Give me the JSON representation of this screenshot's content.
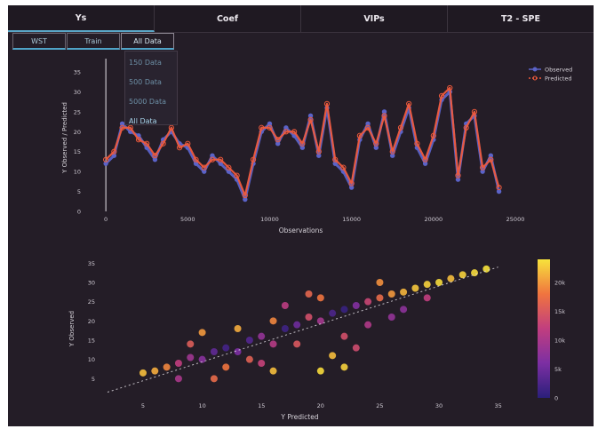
{
  "tabs": [
    {
      "label": "Ys"
    },
    {
      "label": "Coef"
    },
    {
      "label": "VIPs"
    },
    {
      "label": "T2 - SPE"
    }
  ],
  "subtabs": [
    {
      "label": "WST"
    },
    {
      "label": "Train"
    },
    {
      "label": "All Data"
    }
  ],
  "dropdown": {
    "options": [
      {
        "label": "150 Data"
      },
      {
        "label": "500 Data"
      },
      {
        "label": "5000 Data"
      },
      {
        "label": "All Data"
      }
    ],
    "selected": "All Data"
  },
  "colors": {
    "observed": "#5b63c8",
    "predicted": "#ef5a3c",
    "background": "#241d27",
    "accent": "#4fa3c7"
  },
  "chart_data": [
    {
      "type": "line",
      "xlabel": "Observations",
      "ylabel": "Y Observed / Predicted",
      "xlim": [
        -1200,
        25000
      ],
      "ylim": [
        0,
        37
      ],
      "xticks": [
        0,
        5000,
        10000,
        15000,
        20000,
        25000
      ],
      "xtick_labels": [
        "0",
        "5000",
        "10000",
        "15000",
        "20000",
        "25000"
      ],
      "yticks": [
        0,
        5,
        10,
        15,
        20,
        25,
        30,
        35
      ],
      "ytick_labels": [
        "0",
        "5",
        "10",
        "15",
        "20",
        "25",
        "30",
        "35"
      ],
      "legend_position": "top-right",
      "vline_x": 0,
      "series": [
        {
          "name": "Observed",
          "x": [
            0,
            500,
            1000,
            1500,
            2000,
            2500,
            3000,
            3500,
            4000,
            4500,
            5000,
            5500,
            6000,
            6500,
            7000,
            7500,
            8000,
            8500,
            9000,
            9500,
            10000,
            10500,
            11000,
            11500,
            12000,
            12500,
            13000,
            13500,
            14000,
            14500,
            15000,
            15500,
            16000,
            16500,
            17000,
            17500,
            18000,
            18500,
            19000,
            19500,
            20000,
            20500,
            21000,
            21500,
            22000,
            22500,
            23000,
            23500,
            24000
          ],
          "y": [
            12,
            14,
            22,
            20,
            19,
            16,
            13,
            18,
            20,
            17,
            16,
            12,
            10,
            14,
            12,
            10,
            8,
            3,
            12,
            20,
            22,
            17,
            21,
            19,
            16,
            24,
            14,
            26,
            12,
            10,
            6,
            18,
            22,
            16,
            25,
            14,
            20,
            26,
            16,
            12,
            18,
            28,
            30,
            8,
            22,
            24,
            10,
            14,
            5
          ]
        },
        {
          "name": "Predicted",
          "x": [
            0,
            500,
            1000,
            1500,
            2000,
            2500,
            3000,
            3500,
            4000,
            4500,
            5000,
            5500,
            6000,
            6500,
            7000,
            7500,
            8000,
            8500,
            9000,
            9500,
            10000,
            10500,
            11000,
            11500,
            12000,
            12500,
            13000,
            13500,
            14000,
            14500,
            15000,
            15500,
            16000,
            16500,
            17000,
            17500,
            18000,
            18500,
            19000,
            19500,
            20000,
            20500,
            21000,
            21500,
            22000,
            22500,
            23000,
            23500,
            24000
          ],
          "y": [
            13,
            15,
            21,
            21,
            18,
            17,
            14,
            17,
            21,
            16,
            17,
            13,
            11,
            13,
            13,
            11,
            9,
            4,
            13,
            21,
            21,
            18,
            20,
            20,
            17,
            23,
            15,
            27,
            13,
            11,
            7,
            19,
            21,
            17,
            24,
            15,
            21,
            27,
            17,
            13,
            19,
            29,
            31,
            9,
            21,
            25,
            11,
            13,
            6
          ]
        }
      ]
    },
    {
      "type": "scatter",
      "xlabel": "Y Predicted",
      "ylabel": "Y Observed",
      "xlim": [
        2,
        36
      ],
      "ylim": [
        0,
        36
      ],
      "xticks": [
        5,
        10,
        15,
        20,
        25,
        30,
        35
      ],
      "xtick_labels": [
        "5",
        "10",
        "15",
        "20",
        "25",
        "30",
        "35"
      ],
      "yticks": [
        5,
        10,
        15,
        20,
        25,
        30,
        35
      ],
      "ytick_labels": [
        "5",
        "10",
        "15",
        "20",
        "25",
        "30",
        "35"
      ],
      "reference_line": [
        [
          2,
          1.5
        ],
        [
          35,
          34
        ]
      ],
      "colorbar": {
        "range": [
          0,
          24000
        ],
        "ticks": [
          0,
          5000,
          10000,
          15000,
          20000
        ],
        "tick_labels": [
          "0",
          "5k",
          "10k",
          "15k",
          "20k"
        ]
      },
      "points": [
        {
          "x": 5,
          "y": 6.5,
          "c": 22000
        },
        {
          "x": 6,
          "y": 7,
          "c": 21000
        },
        {
          "x": 7,
          "y": 8,
          "c": 19000
        },
        {
          "x": 8,
          "y": 9,
          "c": 12000
        },
        {
          "x": 9,
          "y": 10.5,
          "c": 9000
        },
        {
          "x": 10,
          "y": 10,
          "c": 7000
        },
        {
          "x": 11,
          "y": 12,
          "c": 4000
        },
        {
          "x": 12,
          "y": 13,
          "c": 2000
        },
        {
          "x": 13,
          "y": 12,
          "c": 6000
        },
        {
          "x": 14,
          "y": 15,
          "c": 3000
        },
        {
          "x": 15,
          "y": 16,
          "c": 8000
        },
        {
          "x": 16,
          "y": 14,
          "c": 11000
        },
        {
          "x": 17,
          "y": 18,
          "c": 1500
        },
        {
          "x": 18,
          "y": 19,
          "c": 5000
        },
        {
          "x": 19,
          "y": 21,
          "c": 14000
        },
        {
          "x": 20,
          "y": 20,
          "c": 9500
        },
        {
          "x": 21,
          "y": 22,
          "c": 2500
        },
        {
          "x": 22,
          "y": 23,
          "c": 1000
        },
        {
          "x": 23,
          "y": 24,
          "c": 6500
        },
        {
          "x": 24,
          "y": 25,
          "c": 13000
        },
        {
          "x": 25,
          "y": 26,
          "c": 17000
        },
        {
          "x": 26,
          "y": 27,
          "c": 20000
        },
        {
          "x": 27,
          "y": 27.5,
          "c": 21500
        },
        {
          "x": 28,
          "y": 28.5,
          "c": 22500
        },
        {
          "x": 29,
          "y": 29.5,
          "c": 23000
        },
        {
          "x": 30,
          "y": 30,
          "c": 23500
        },
        {
          "x": 31,
          "y": 31,
          "c": 22000
        },
        {
          "x": 32,
          "y": 32,
          "c": 23000
        },
        {
          "x": 33,
          "y": 32.5,
          "c": 23500
        },
        {
          "x": 34,
          "y": 33.5,
          "c": 24000
        },
        {
          "x": 12,
          "y": 8,
          "c": 18000
        },
        {
          "x": 14,
          "y": 10,
          "c": 16000
        },
        {
          "x": 16,
          "y": 20,
          "c": 19000
        },
        {
          "x": 18,
          "y": 14,
          "c": 15000
        },
        {
          "x": 20,
          "y": 26,
          "c": 18000
        },
        {
          "x": 22,
          "y": 16,
          "c": 14000
        },
        {
          "x": 10,
          "y": 17,
          "c": 20000
        },
        {
          "x": 11,
          "y": 5,
          "c": 17000
        },
        {
          "x": 13,
          "y": 18,
          "c": 21000
        },
        {
          "x": 15,
          "y": 9,
          "c": 12500
        },
        {
          "x": 24,
          "y": 19,
          "c": 10500
        },
        {
          "x": 26,
          "y": 21,
          "c": 8000
        },
        {
          "x": 19,
          "y": 27,
          "c": 16500
        },
        {
          "x": 21,
          "y": 11,
          "c": 22000
        },
        {
          "x": 23,
          "y": 13,
          "c": 13500
        },
        {
          "x": 17,
          "y": 24,
          "c": 11500
        },
        {
          "x": 9,
          "y": 14,
          "c": 15500
        },
        {
          "x": 8,
          "y": 5,
          "c": 10000
        },
        {
          "x": 27,
          "y": 23,
          "c": 7500
        },
        {
          "x": 29,
          "y": 26,
          "c": 12000
        },
        {
          "x": 25,
          "y": 30,
          "c": 19500
        },
        {
          "x": 22,
          "y": 8,
          "c": 23000
        },
        {
          "x": 20,
          "y": 7,
          "c": 23500
        },
        {
          "x": 16,
          "y": 7,
          "c": 22000
        }
      ]
    }
  ]
}
